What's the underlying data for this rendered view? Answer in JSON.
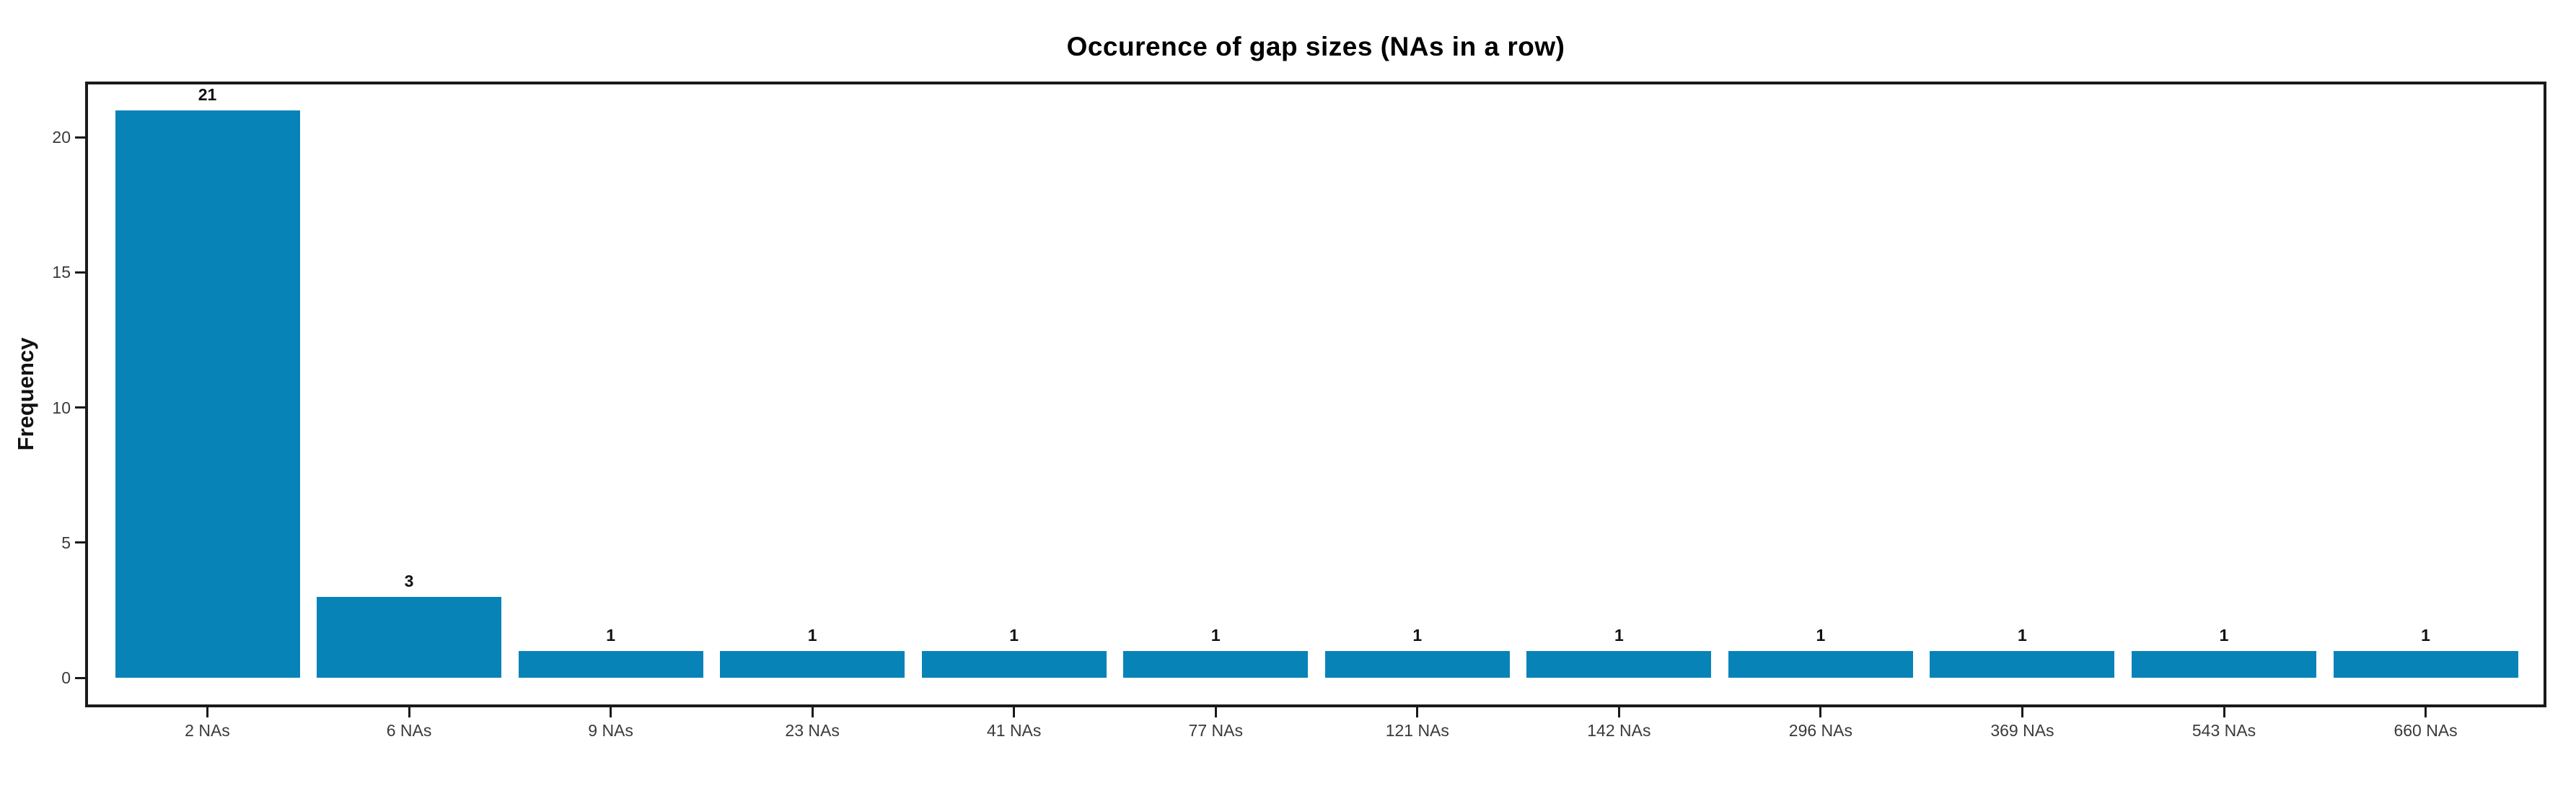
{
  "chart_data": {
    "type": "bar",
    "title": "Occurence of gap sizes (NAs in a row)",
    "xlabel": "",
    "ylabel": "Frequency",
    "categories": [
      "2 NAs",
      "6 NAs",
      "9 NAs",
      "23 NAs",
      "41 NAs",
      "77 NAs",
      "121 NAs",
      "142 NAs",
      "296 NAs",
      "369 NAs",
      "543 NAs",
      "660 NAs"
    ],
    "values": [
      21,
      3,
      1,
      1,
      1,
      1,
      1,
      1,
      1,
      1,
      1,
      1
    ],
    "bar_labels": [
      "21",
      "3",
      "1",
      "1",
      "1",
      "1",
      "1",
      "1",
      "1",
      "1",
      "1",
      "1"
    ],
    "yticks": [
      0,
      5,
      10,
      15,
      20
    ],
    "ylim": [
      0,
      22.4
    ],
    "grid": false,
    "legend": "none",
    "bar_color": "#0883b8",
    "panel_border_color": "#1a1a1a",
    "title_color": "#000000",
    "tick_label_color": "#3a3a3a"
  }
}
